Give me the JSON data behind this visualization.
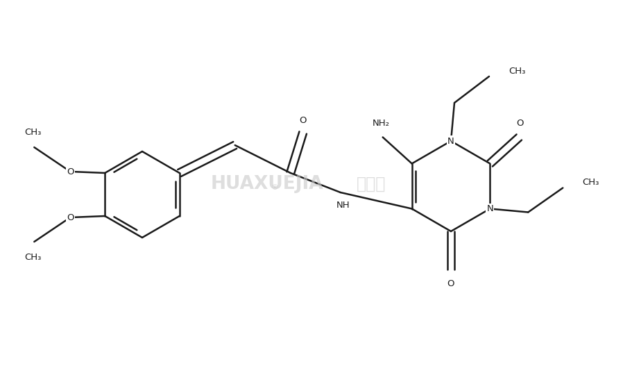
{
  "background_color": "#ffffff",
  "line_color": "#1a1a1a",
  "line_width": 1.8,
  "font_size": 9.5,
  "fig_width": 9.11,
  "fig_height": 5.6,
  "xlim": [
    0,
    9.11
  ],
  "ylim": [
    0,
    5.6
  ]
}
